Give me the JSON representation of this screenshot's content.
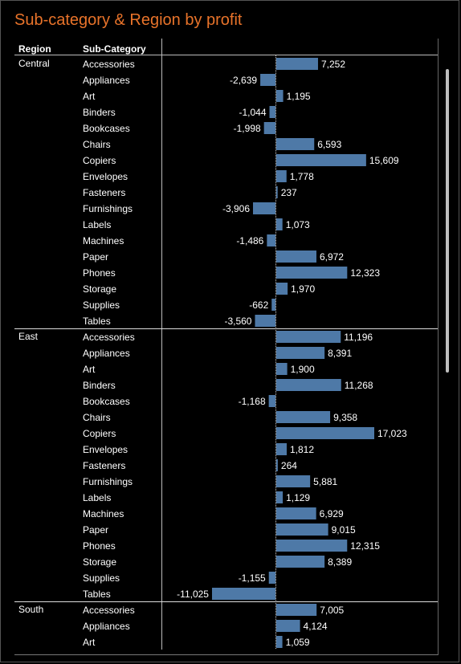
{
  "title": "Sub-category & Region by profit",
  "headers": {
    "region": "Region",
    "subcategory": "Sub-Category"
  },
  "colors": {
    "bar": "#4e79a7",
    "title": "#e8732a",
    "background": "#000000",
    "text": "#ffffff"
  },
  "chart_data": {
    "type": "bar",
    "orientation": "horizontal",
    "title": "Sub-category & Region by profit",
    "groups": [
      {
        "region": "Central",
        "categories": [
          "Accessories",
          "Appliances",
          "Art",
          "Binders",
          "Bookcases",
          "Chairs",
          "Copiers",
          "Envelopes",
          "Fasteners",
          "Furnishings",
          "Labels",
          "Machines",
          "Paper",
          "Phones",
          "Storage",
          "Supplies",
          "Tables"
        ],
        "values": [
          7252,
          -2639,
          1195,
          -1044,
          -1998,
          6593,
          15609,
          1778,
          237,
          -3906,
          1073,
          -1486,
          6972,
          12323,
          1970,
          -662,
          -3560
        ],
        "labels": [
          "7,252",
          "-2,639",
          "1,195",
          "-1,044",
          "-1,998",
          "6,593",
          "15,609",
          "1,778",
          "237",
          "-3,906",
          "1,073",
          "-1,486",
          "6,972",
          "12,323",
          "1,970",
          "-662",
          "-3,560"
        ]
      },
      {
        "region": "East",
        "categories": [
          "Accessories",
          "Appliances",
          "Art",
          "Binders",
          "Bookcases",
          "Chairs",
          "Copiers",
          "Envelopes",
          "Fasteners",
          "Furnishings",
          "Labels",
          "Machines",
          "Paper",
          "Phones",
          "Storage",
          "Supplies",
          "Tables"
        ],
        "values": [
          11196,
          8391,
          1900,
          11268,
          -1168,
          9358,
          17023,
          1812,
          264,
          5881,
          1129,
          6929,
          9015,
          12315,
          8389,
          -1155,
          -11025
        ],
        "labels": [
          "11,196",
          "8,391",
          "1,900",
          "11,268",
          "-1,168",
          "9,358",
          "17,023",
          "1,812",
          "264",
          "5,881",
          "1,129",
          "6,929",
          "9,015",
          "12,315",
          "8,389",
          "-1,155",
          "-11,025"
        ]
      },
      {
        "region": "South",
        "categories": [
          "Accessories",
          "Appliances",
          "Art"
        ],
        "values": [
          7005,
          4124,
          1059
        ],
        "labels": [
          "7,005",
          "4,124",
          "1,059"
        ]
      }
    ]
  }
}
